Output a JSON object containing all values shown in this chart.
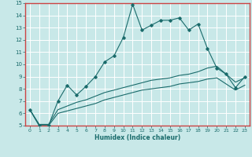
{
  "title": "",
  "xlabel": "Humidex (Indice chaleur)",
  "bg_color": "#c8e8e8",
  "plot_bg_color": "#c8e8e8",
  "grid_color": "#ffffff",
  "line_color": "#1a6b6b",
  "border_color": "#cc4444",
  "label_bg_color": "#2a7070",
  "label_text_color": "#c8e8e8",
  "xlim": [
    -0.5,
    23.5
  ],
  "ylim": [
    5,
    15
  ],
  "xtick_labels": [
    "0",
    "1",
    "2",
    "3",
    "4",
    "5",
    "6",
    "7",
    "8",
    "9",
    "10",
    "11",
    "12",
    "13",
    "14",
    "15",
    "16",
    "17",
    "18",
    "19",
    "20",
    "21",
    "22",
    "23"
  ],
  "xtick_pos": [
    0,
    1,
    2,
    3,
    4,
    5,
    6,
    7,
    8,
    9,
    10,
    11,
    12,
    13,
    14,
    15,
    16,
    17,
    18,
    19,
    20,
    21,
    22,
    23
  ],
  "yticks": [
    5,
    6,
    7,
    8,
    9,
    10,
    11,
    12,
    13,
    14,
    15
  ],
  "series1_x": [
    0,
    1,
    2,
    3,
    4,
    5,
    6,
    7,
    8,
    9,
    10,
    11,
    12,
    13,
    14,
    15,
    16,
    17,
    18,
    19,
    20,
    21,
    22,
    23
  ],
  "series1_y": [
    6.3,
    5.0,
    5.0,
    7.0,
    8.3,
    7.5,
    8.2,
    9.0,
    10.2,
    10.7,
    12.2,
    14.9,
    12.8,
    13.2,
    13.6,
    13.6,
    13.8,
    12.8,
    13.3,
    11.3,
    9.7,
    9.2,
    8.1,
    9.0
  ],
  "series2_x": [
    0,
    1,
    2,
    3,
    4,
    5,
    6,
    7,
    8,
    9,
    10,
    11,
    12,
    13,
    14,
    15,
    16,
    17,
    18,
    19,
    20,
    21,
    22,
    23
  ],
  "series2_y": [
    6.3,
    5.1,
    5.1,
    6.3,
    6.6,
    6.9,
    7.1,
    7.4,
    7.7,
    7.9,
    8.1,
    8.3,
    8.5,
    8.7,
    8.8,
    8.9,
    9.1,
    9.2,
    9.4,
    9.7,
    9.85,
    9.2,
    8.55,
    8.9
  ],
  "series3_x": [
    0,
    1,
    2,
    3,
    4,
    5,
    6,
    7,
    8,
    9,
    10,
    11,
    12,
    13,
    14,
    15,
    16,
    17,
    18,
    19,
    20,
    21,
    22,
    23
  ],
  "series3_y": [
    6.3,
    5.0,
    5.0,
    6.0,
    6.2,
    6.4,
    6.6,
    6.8,
    7.1,
    7.3,
    7.5,
    7.7,
    7.9,
    8.0,
    8.1,
    8.2,
    8.4,
    8.5,
    8.6,
    8.8,
    8.9,
    8.4,
    7.9,
    8.3
  ]
}
